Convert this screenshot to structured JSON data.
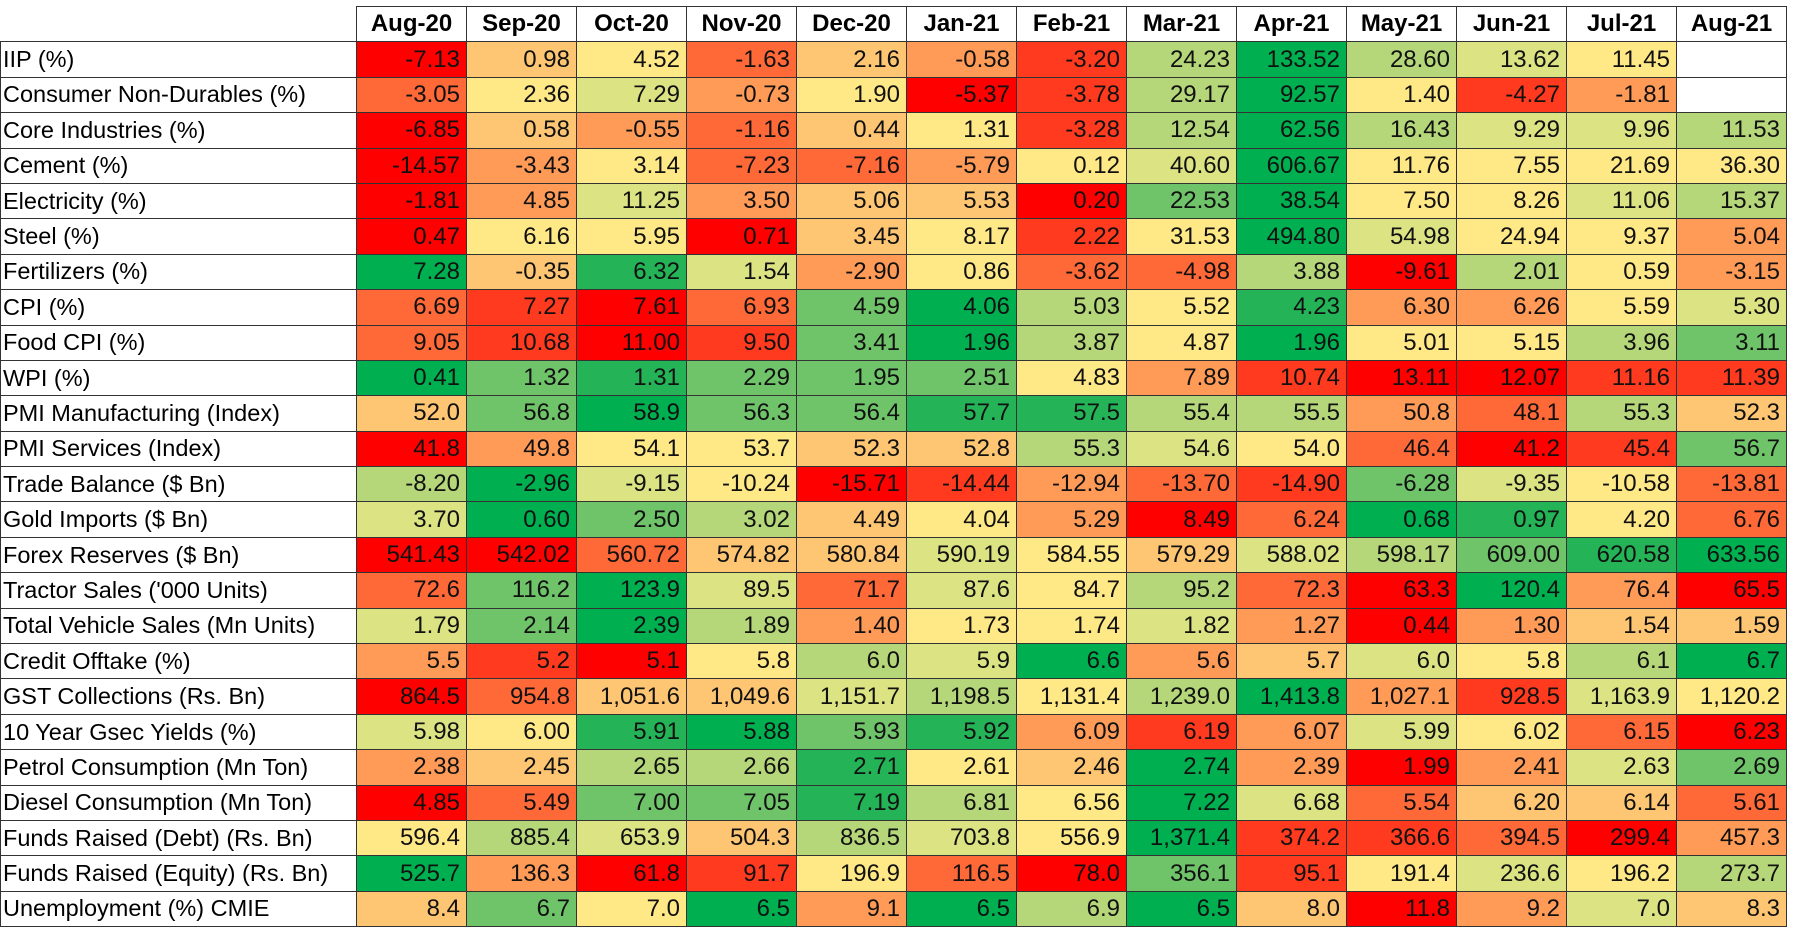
{
  "palette": {
    "R": "#FF0000",
    "r": "#FF3A1F",
    "O": "#FF6837",
    "o": "#FF9B57",
    "p": "#FEC673",
    "Y": "#FFE886",
    "y": "#DCE383",
    "l": "#B5D779",
    "g": "#6FC46A",
    "G": "#24B457",
    "D": "#00B050",
    "W": "#FFFFFF"
  },
  "months": [
    "Aug-20",
    "Sep-20",
    "Oct-20",
    "Nov-20",
    "Dec-20",
    "Jan-21",
    "Feb-21",
    "Mar-21",
    "Apr-21",
    "May-21",
    "Jun-21",
    "Jul-21",
    "Aug-21"
  ],
  "rows": [
    {
      "label": "IIP (%)",
      "values": [
        "-7.13",
        "0.98",
        "4.52",
        "-1.63",
        "2.16",
        "-0.58",
        "-3.20",
        "24.23",
        "133.52",
        "28.60",
        "13.62",
        "11.45",
        ""
      ],
      "colors": [
        "R",
        "p",
        "Y",
        "O",
        "p",
        "o",
        "r",
        "l",
        "D",
        "l",
        "y",
        "Y",
        "W"
      ]
    },
    {
      "label": "Consumer Non-Durables (%)",
      "values": [
        "-3.05",
        "2.36",
        "7.29",
        "-0.73",
        "1.90",
        "-5.37",
        "-3.78",
        "29.17",
        "92.57",
        "1.40",
        "-4.27",
        "-1.81",
        ""
      ],
      "colors": [
        "O",
        "Y",
        "y",
        "o",
        "Y",
        "R",
        "r",
        "l",
        "D",
        "Y",
        "r",
        "o",
        "W"
      ]
    },
    {
      "label": "Core Industries (%)",
      "values": [
        "-6.85",
        "0.58",
        "-0.55",
        "-1.16",
        "0.44",
        "1.31",
        "-3.28",
        "12.54",
        "62.56",
        "16.43",
        "9.29",
        "9.96",
        "11.53"
      ],
      "colors": [
        "R",
        "p",
        "o",
        "O",
        "p",
        "Y",
        "r",
        "l",
        "D",
        "l",
        "y",
        "y",
        "l"
      ]
    },
    {
      "label": "Cement (%)",
      "values": [
        "-14.57",
        "-3.43",
        "3.14",
        "-7.23",
        "-7.16",
        "-5.79",
        "0.12",
        "40.60",
        "606.67",
        "11.76",
        "7.55",
        "21.69",
        "36.30"
      ],
      "colors": [
        "R",
        "o",
        "Y",
        "O",
        "O",
        "o",
        "Y",
        "y",
        "D",
        "Y",
        "Y",
        "Y",
        "Y"
      ]
    },
    {
      "label": "Electricity (%)",
      "values": [
        "-1.81",
        "4.85",
        "11.25",
        "3.50",
        "5.06",
        "5.53",
        "0.20",
        "22.53",
        "38.54",
        "7.50",
        "8.26",
        "11.06",
        "15.37"
      ],
      "colors": [
        "R",
        "o",
        "y",
        "o",
        "p",
        "p",
        "R",
        "g",
        "D",
        "Y",
        "Y",
        "y",
        "l"
      ]
    },
    {
      "label": "Steel (%)",
      "values": [
        "0.47",
        "6.16",
        "5.95",
        "0.71",
        "3.45",
        "8.17",
        "2.22",
        "31.53",
        "494.80",
        "54.98",
        "24.94",
        "9.37",
        "5.04"
      ],
      "colors": [
        "R",
        "Y",
        "Y",
        "R",
        "p",
        "Y",
        "r",
        "Y",
        "D",
        "y",
        "Y",
        "Y",
        "o"
      ]
    },
    {
      "label": "Fertilizers (%)",
      "values": [
        "7.28",
        "-0.35",
        "6.32",
        "1.54",
        "-2.90",
        "0.86",
        "-3.62",
        "-4.98",
        "3.88",
        "-9.61",
        "2.01",
        "0.59",
        "-3.15"
      ],
      "colors": [
        "D",
        "p",
        "G",
        "y",
        "o",
        "Y",
        "O",
        "O",
        "l",
        "R",
        "l",
        "Y",
        "o"
      ]
    },
    {
      "label": "CPI (%)",
      "values": [
        "6.69",
        "7.27",
        "7.61",
        "6.93",
        "4.59",
        "4.06",
        "5.03",
        "5.52",
        "4.23",
        "6.30",
        "6.26",
        "5.59",
        "5.30"
      ],
      "colors": [
        "O",
        "r",
        "R",
        "O",
        "g",
        "D",
        "l",
        "Y",
        "G",
        "o",
        "o",
        "Y",
        "y"
      ]
    },
    {
      "label": "Food CPI (%)",
      "values": [
        "9.05",
        "10.68",
        "11.00",
        "9.50",
        "3.41",
        "1.96",
        "3.87",
        "4.87",
        "1.96",
        "5.01",
        "5.15",
        "3.96",
        "3.11"
      ],
      "colors": [
        "O",
        "r",
        "R",
        "r",
        "g",
        "D",
        "l",
        "Y",
        "D",
        "Y",
        "Y",
        "l",
        "g"
      ]
    },
    {
      "label": "WPI (%)",
      "values": [
        "0.41",
        "1.32",
        "1.31",
        "2.29",
        "1.95",
        "2.51",
        "4.83",
        "7.89",
        "10.74",
        "13.11",
        "12.07",
        "11.16",
        "11.39"
      ],
      "colors": [
        "D",
        "g",
        "G",
        "g",
        "g",
        "g",
        "Y",
        "o",
        "r",
        "R",
        "R",
        "r",
        "r"
      ]
    },
    {
      "label": "PMI Manufacturing (Index)",
      "values": [
        "52.0",
        "56.8",
        "58.9",
        "56.3",
        "56.4",
        "57.7",
        "57.5",
        "55.4",
        "55.5",
        "50.8",
        "48.1",
        "55.3",
        "52.3"
      ],
      "colors": [
        "p",
        "g",
        "D",
        "g",
        "g",
        "G",
        "G",
        "l",
        "l",
        "o",
        "O",
        "l",
        "p"
      ]
    },
    {
      "label": "PMI Services (Index)",
      "values": [
        "41.8",
        "49.8",
        "54.1",
        "53.7",
        "52.3",
        "52.8",
        "55.3",
        "54.6",
        "54.0",
        "46.4",
        "41.2",
        "45.4",
        "56.7"
      ],
      "colors": [
        "R",
        "o",
        "Y",
        "Y",
        "p",
        "p",
        "l",
        "y",
        "Y",
        "O",
        "R",
        "r",
        "g"
      ]
    },
    {
      "label": "Trade Balance ($ Bn)",
      "values": [
        "-8.20",
        "-2.96",
        "-9.15",
        "-10.24",
        "-15.71",
        "-14.44",
        "-12.94",
        "-13.70",
        "-14.90",
        "-6.28",
        "-9.35",
        "-10.58",
        "-13.81"
      ],
      "colors": [
        "l",
        "D",
        "y",
        "Y",
        "R",
        "r",
        "o",
        "O",
        "r",
        "g",
        "y",
        "Y",
        "O"
      ]
    },
    {
      "label": "Gold Imports ($ Bn)",
      "values": [
        "3.70",
        "0.60",
        "2.50",
        "3.02",
        "4.49",
        "4.04",
        "5.29",
        "8.49",
        "6.24",
        "0.68",
        "0.97",
        "4.20",
        "6.76"
      ],
      "colors": [
        "y",
        "D",
        "g",
        "l",
        "p",
        "Y",
        "o",
        "R",
        "O",
        "D",
        "G",
        "Y",
        "O"
      ]
    },
    {
      "label": "Forex Reserves ($ Bn)",
      "values": [
        "541.43",
        "542.02",
        "560.72",
        "574.82",
        "580.84",
        "590.19",
        "584.55",
        "579.29",
        "588.02",
        "598.17",
        "609.00",
        "620.58",
        "633.56"
      ],
      "colors": [
        "R",
        "R",
        "O",
        "p",
        "p",
        "y",
        "Y",
        "p",
        "y",
        "l",
        "g",
        "G",
        "D"
      ]
    },
    {
      "label": "Tractor Sales ('000 Units)",
      "values": [
        "72.6",
        "116.2",
        "123.9",
        "89.5",
        "71.7",
        "87.6",
        "84.7",
        "95.2",
        "72.3",
        "63.3",
        "120.4",
        "76.4",
        "65.5"
      ],
      "colors": [
        "O",
        "g",
        "D",
        "y",
        "O",
        "y",
        "Y",
        "l",
        "O",
        "R",
        "D",
        "o",
        "R"
      ]
    },
    {
      "label": "Total Vehicle Sales (Mn Units)",
      "values": [
        "1.79",
        "2.14",
        "2.39",
        "1.89",
        "1.40",
        "1.73",
        "1.74",
        "1.82",
        "1.27",
        "0.44",
        "1.30",
        "1.54",
        "1.59"
      ],
      "colors": [
        "y",
        "g",
        "D",
        "l",
        "o",
        "Y",
        "Y",
        "y",
        "o",
        "R",
        "o",
        "p",
        "p"
      ]
    },
    {
      "label": "Credit Offtake (%)",
      "values": [
        "5.5",
        "5.2",
        "5.1",
        "5.8",
        "6.0",
        "5.9",
        "6.6",
        "5.6",
        "5.7",
        "6.0",
        "5.8",
        "6.1",
        "6.7"
      ],
      "colors": [
        "o",
        "r",
        "R",
        "Y",
        "l",
        "y",
        "D",
        "o",
        "p",
        "y",
        "Y",
        "l",
        "D"
      ]
    },
    {
      "label": "GST Collections (Rs. Bn)",
      "values": [
        "864.5",
        "954.8",
        "1,051.6",
        "1,049.6",
        "1,151.7",
        "1,198.5",
        "1,131.4",
        "1,239.0",
        "1,413.8",
        "1,027.1",
        "928.5",
        "1,163.9",
        "1,120.2"
      ],
      "colors": [
        "R",
        "O",
        "p",
        "p",
        "y",
        "l",
        "Y",
        "l",
        "D",
        "o",
        "r",
        "y",
        "Y"
      ]
    },
    {
      "label": "10 Year Gsec Yields (%)",
      "values": [
        "5.98",
        "6.00",
        "5.91",
        "5.88",
        "5.93",
        "5.92",
        "6.09",
        "6.19",
        "6.07",
        "5.99",
        "6.02",
        "6.15",
        "6.23"
      ],
      "colors": [
        "y",
        "Y",
        "G",
        "D",
        "g",
        "G",
        "o",
        "r",
        "o",
        "y",
        "Y",
        "O",
        "R"
      ]
    },
    {
      "label": "Petrol Consumption (Mn Ton)",
      "values": [
        "2.38",
        "2.45",
        "2.65",
        "2.66",
        "2.71",
        "2.61",
        "2.46",
        "2.74",
        "2.39",
        "1.99",
        "2.41",
        "2.63",
        "2.69"
      ],
      "colors": [
        "o",
        "p",
        "l",
        "l",
        "G",
        "Y",
        "p",
        "D",
        "o",
        "R",
        "o",
        "y",
        "g"
      ]
    },
    {
      "label": "Diesel Consumption (Mn Ton)",
      "values": [
        "4.85",
        "5.49",
        "7.00",
        "7.05",
        "7.19",
        "6.81",
        "6.56",
        "7.22",
        "6.68",
        "5.54",
        "6.20",
        "6.14",
        "5.61"
      ],
      "colors": [
        "R",
        "O",
        "g",
        "g",
        "G",
        "l",
        "Y",
        "D",
        "y",
        "O",
        "p",
        "p",
        "O"
      ]
    },
    {
      "label": "Funds Raised (Debt) (Rs. Bn)",
      "values": [
        "596.4",
        "885.4",
        "653.9",
        "504.3",
        "836.5",
        "703.8",
        "556.9",
        "1,371.4",
        "374.2",
        "366.6",
        "394.5",
        "299.4",
        "457.3"
      ],
      "colors": [
        "Y",
        "l",
        "y",
        "p",
        "l",
        "y",
        "Y",
        "D",
        "r",
        "r",
        "O",
        "R",
        "o"
      ]
    },
    {
      "label": "Funds Raised (Equity) (Rs. Bn)",
      "values": [
        "525.7",
        "136.3",
        "61.8",
        "91.7",
        "196.9",
        "116.5",
        "78.0",
        "356.1",
        "95.1",
        "191.4",
        "236.6",
        "196.2",
        "273.7"
      ],
      "colors": [
        "D",
        "o",
        "R",
        "r",
        "Y",
        "O",
        "R",
        "g",
        "r",
        "Y",
        "y",
        "Y",
        "l"
      ]
    },
    {
      "label": "Unemployment (%) CMIE",
      "values": [
        "8.4",
        "6.7",
        "7.0",
        "6.5",
        "9.1",
        "6.5",
        "6.9",
        "6.5",
        "8.0",
        "11.8",
        "9.2",
        "7.0",
        "8.3"
      ],
      "colors": [
        "p",
        "g",
        "Y",
        "D",
        "o",
        "D",
        "l",
        "D",
        "p",
        "R",
        "o",
        "y",
        "p"
      ]
    }
  ]
}
